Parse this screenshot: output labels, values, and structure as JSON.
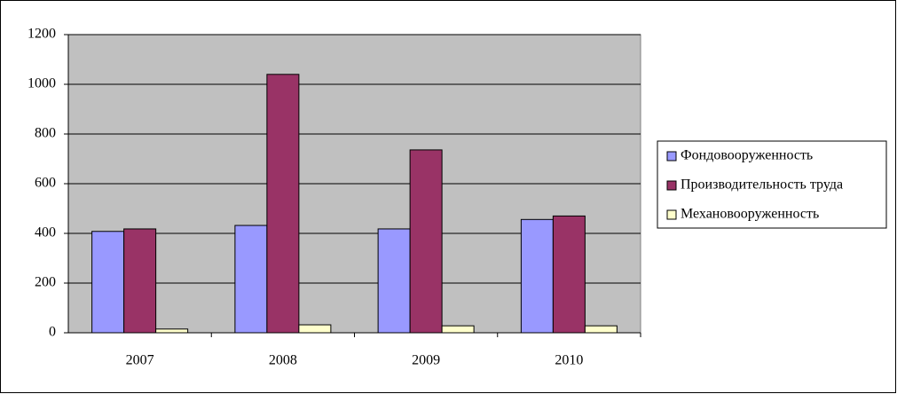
{
  "chart_data": {
    "type": "bar",
    "categories": [
      "2007",
      "2008",
      "2009",
      "2010"
    ],
    "series": [
      {
        "name": "Фондовооруженность",
        "color": "#9999ff",
        "values": [
          408,
          432,
          418,
          456
        ]
      },
      {
        "name": "Производительность труда",
        "color": "#993366",
        "values": [
          418,
          1040,
          736,
          470
        ]
      },
      {
        "name": "Механовооруженность",
        "color": "#ffffcc",
        "values": [
          15,
          32,
          28,
          28
        ]
      }
    ],
    "ylim": [
      0,
      1200
    ],
    "yticks": [
      0,
      200,
      400,
      600,
      800,
      1000,
      1200
    ],
    "grid": true,
    "legend": "right"
  }
}
